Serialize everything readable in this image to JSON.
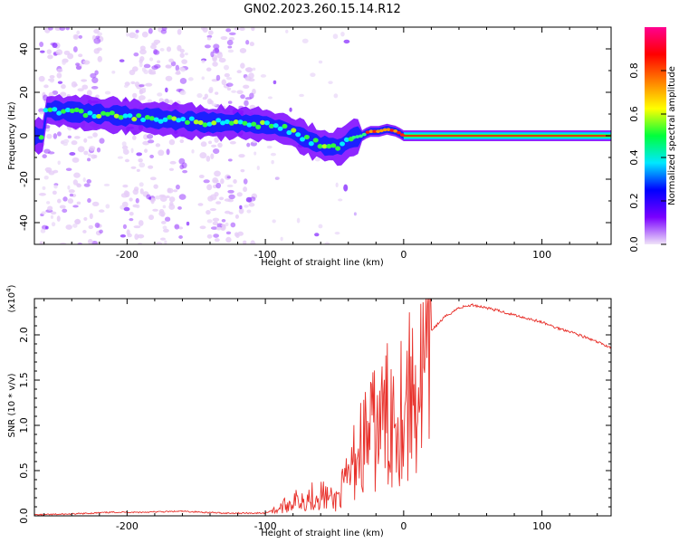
{
  "title": "GN02.2023.260.15.14.R12",
  "chart_data": [
    {
      "type": "heatmap",
      "xlabel": "Height of straight line (km)",
      "ylabel": "Frequency (Hz)",
      "xlim": [
        -267,
        150
      ],
      "ylim": [
        -50,
        50
      ],
      "x_ticks": [
        -200,
        -100,
        0,
        100
      ],
      "y_ticks": [
        40,
        20,
        0,
        -20,
        -40
      ],
      "x_tick_labels": [
        "-200",
        "-100",
        "0",
        "100"
      ],
      "y_tick_labels": [
        "40",
        "20",
        "0",
        "-20",
        "-40"
      ],
      "colorbar": {
        "label": "Normalized spectral amplitude",
        "range": [
          0,
          1
        ],
        "ticks": [
          0.0,
          0.2,
          0.4,
          0.6,
          0.8
        ],
        "tick_labels": [
          "0.0",
          "0.2",
          "0.4",
          "0.6",
          "0.8"
        ],
        "colormap": [
          "#f0e4f8",
          "#7a00ff",
          "#0000ff",
          "#00e8ff",
          "#00ff3c",
          "#ffff00",
          "#ff8000",
          "#ff0000",
          "#ff0090"
        ]
      },
      "ridge": [
        {
          "x": -260,
          "y": 12
        },
        {
          "x": -220,
          "y": 10
        },
        {
          "x": -180,
          "y": 8
        },
        {
          "x": -140,
          "y": 6
        },
        {
          "x": -120,
          "y": 6
        },
        {
          "x": -100,
          "y": 5
        },
        {
          "x": -85,
          "y": 3
        },
        {
          "x": -75,
          "y": 0
        },
        {
          "x": -65,
          "y": -3
        },
        {
          "x": -55,
          "y": -5
        },
        {
          "x": -45,
          "y": -5
        },
        {
          "x": -38,
          "y": -1
        },
        {
          "x": -30,
          "y": 0
        },
        {
          "x": -25,
          "y": 2
        },
        {
          "x": -18,
          "y": 2
        },
        {
          "x": -12,
          "y": 3
        },
        {
          "x": -5,
          "y": 2
        },
        {
          "x": 0,
          "y": 0
        },
        {
          "x": 150,
          "y": 0
        }
      ]
    },
    {
      "type": "line",
      "xlabel": "Height of straight line (km)",
      "ylabel": "SNR (10 * v/v)",
      "multiplier": "(x10",
      "multiplier_exp": "4",
      "multiplier_close": ")",
      "xlim": [
        -267,
        150
      ],
      "ylim": [
        0,
        2.4
      ],
      "x_ticks": [
        -200,
        -100,
        0,
        100
      ],
      "y_ticks": [
        0.0,
        0.5,
        1.0,
        1.5,
        2.0
      ],
      "x_tick_labels": [
        "-200",
        "-100",
        "0",
        "100"
      ],
      "y_tick_labels": [
        "0.0",
        "0.5",
        "1.0",
        "1.5",
        "2.0"
      ],
      "series": [
        {
          "color": "#e8302a",
          "x": [
            -267,
            -240,
            -210,
            -190,
            -160,
            -130,
            -100,
            -90,
            -80,
            -70,
            -60,
            -50,
            -45,
            -40,
            -35,
            -30,
            -25,
            -20,
            -15,
            -10,
            -5,
            0,
            5,
            10,
            15,
            20,
            30,
            40,
            50,
            60,
            70,
            80,
            90,
            100,
            110,
            120,
            130,
            140,
            150
          ],
          "y": [
            0.01,
            0.02,
            0.04,
            0.04,
            0.05,
            0.03,
            0.03,
            0.1,
            0.2,
            0.25,
            0.3,
            0.2,
            0.35,
            0.5,
            0.8,
            1.0,
            1.1,
            1.2,
            1.3,
            1.4,
            1.5,
            1.55,
            1.65,
            1.8,
            1.9,
            2.05,
            2.2,
            2.3,
            2.33,
            2.3,
            2.26,
            2.22,
            2.18,
            2.14,
            2.08,
            2.04,
            1.98,
            1.92,
            1.86
          ]
        }
      ]
    }
  ]
}
